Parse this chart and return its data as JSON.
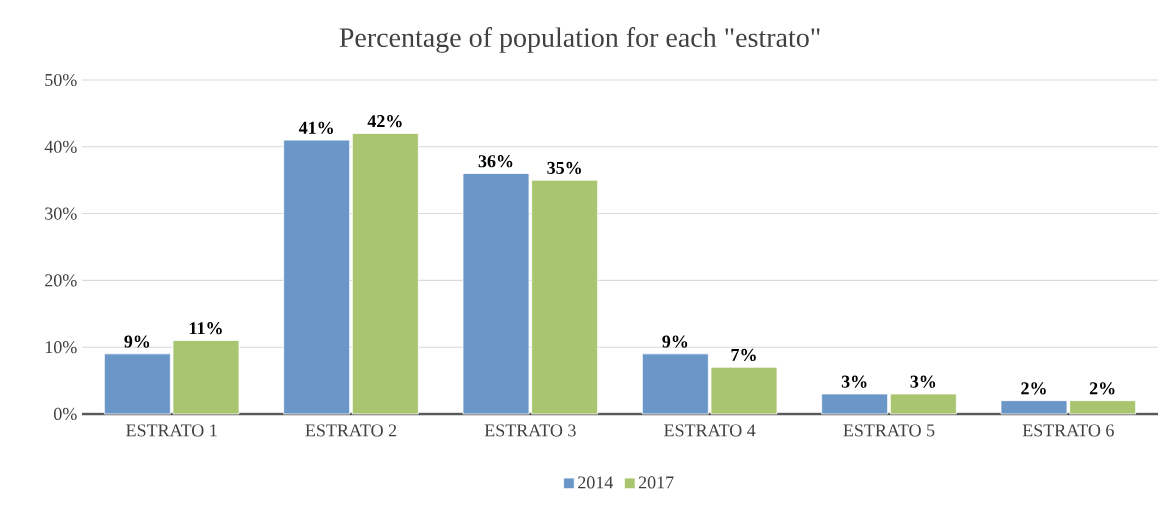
{
  "chart_data": {
    "type": "bar",
    "title": "Percentage of population for each \"estrato\"",
    "categories": [
      "ESTRATO 1",
      "ESTRATO 2",
      "ESTRATO 3",
      "ESTRATO 4",
      "ESTRATO 5",
      "ESTRATO 6"
    ],
    "series": [
      {
        "name": "2014",
        "color": "#6a96c8",
        "values": [
          9,
          41,
          36,
          9,
          3,
          2
        ],
        "value_labels": [
          "9%",
          "41%",
          "36%",
          "9%",
          "3%",
          "2%"
        ]
      },
      {
        "name": "2017",
        "color": "#a9c56f",
        "values": [
          11,
          42,
          35,
          7,
          3,
          2
        ],
        "value_labels": [
          "11%",
          "42%",
          "35%",
          "7%",
          "3%",
          "2%"
        ]
      }
    ],
    "ylim": [
      0,
      50
    ],
    "yticks": [
      {
        "value": 0,
        "label": "0%"
      },
      {
        "value": 10,
        "label": "10%"
      },
      {
        "value": 20,
        "label": "20%"
      },
      {
        "value": 30,
        "label": "30%"
      },
      {
        "value": 40,
        "label": "40%"
      },
      {
        "value": 50,
        "label": "50%"
      }
    ],
    "grid": "y",
    "legend": "bottom"
  }
}
